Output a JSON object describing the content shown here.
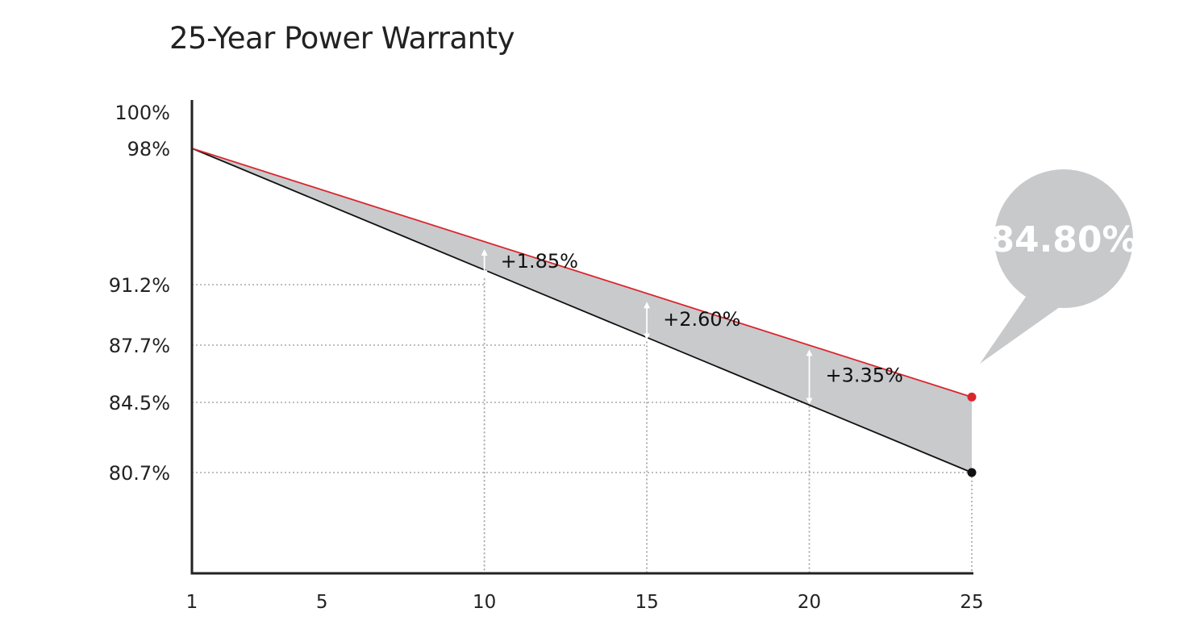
{
  "chart_data": {
    "type": "line",
    "title": "25-Year Power Warranty",
    "xlabel": "",
    "ylabel": "",
    "x_ticks": [
      "1",
      "5",
      "10",
      "15",
      "20",
      "25"
    ],
    "y_ticks": [
      "100%",
      "98%",
      "91.2%",
      "87.7%",
      "84.5%",
      "80.7%"
    ],
    "xlim": [
      1,
      25
    ],
    "series": [
      {
        "x": [
          1,
          25
        ],
        "y": [
          98.0,
          84.8
        ],
        "color": "#d9262e"
      },
      {
        "x": [
          1,
          25
        ],
        "y": [
          98.0,
          80.7
        ],
        "color": "#111111"
      }
    ],
    "fill_between_color": "#c8cacc",
    "gain_annotations": [
      {
        "x": 10,
        "label": "+1.85%"
      },
      {
        "x": 15,
        "label": "+2.60%"
      },
      {
        "x": 20,
        "label": "+3.35%"
      }
    ],
    "callout": {
      "label": "84.80%",
      "x": 25,
      "y": 84.8
    },
    "grid": "dotted guides at labeled values",
    "legend": "none"
  }
}
